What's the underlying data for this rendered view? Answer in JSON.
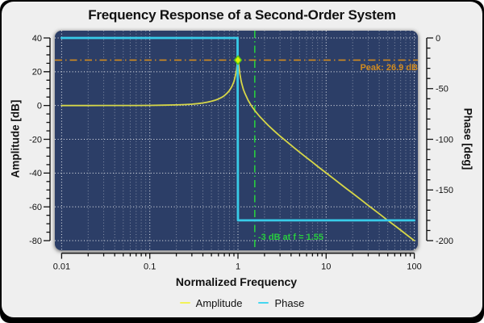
{
  "chart_data": {
    "type": "line",
    "title": "Frequency Response of a Second-Order System",
    "xlabel": "Normalized Frequency",
    "ylabel_left": "Amplitude [dB]",
    "ylabel_right": "Phase [deg]",
    "x_scale": "log",
    "x_range": [
      0.01,
      100
    ],
    "x_tick_values": [
      0.01,
      0.1,
      1,
      10,
      100
    ],
    "x_tick_labels": [
      "0.01",
      "0.1",
      "1",
      "10",
      "100"
    ],
    "y_left_range": [
      -80,
      40
    ],
    "y_left_tick_values": [
      40,
      20,
      0,
      -20,
      -40,
      -60,
      -80
    ],
    "y_left_tick_labels": [
      "40",
      "20",
      "0",
      "-20",
      "-40",
      "-60",
      "-80"
    ],
    "y_left_minor_step": 5,
    "y_right_range": [
      -200,
      0
    ],
    "y_right_tick_values": [
      0,
      -50,
      -100,
      -150,
      -200
    ],
    "y_right_tick_labels": [
      "0",
      "-50",
      "-100",
      "-150",
      "-200"
    ],
    "y_right_minor_step": 10,
    "grid": {
      "on": true,
      "style": "white-dotted",
      "plot_background": "#2c3e67"
    },
    "legend": [
      {
        "label": "Amplitude",
        "color": "#f2f258"
      },
      {
        "label": "Phase",
        "color": "#45d6f0"
      }
    ],
    "series": [
      {
        "name": "Amplitude",
        "axis": "left",
        "color": "#d6d648",
        "width": 1.8,
        "points": [
          [
            0.01,
            0
          ],
          [
            0.02,
            0
          ],
          [
            0.03,
            0.01
          ],
          [
            0.04,
            0.01
          ],
          [
            0.05,
            0.02
          ],
          [
            0.07,
            0.04
          ],
          [
            0.1,
            0.09
          ],
          [
            0.15,
            0.2
          ],
          [
            0.2,
            0.35
          ],
          [
            0.25,
            0.56
          ],
          [
            0.3,
            0.82
          ],
          [
            0.35,
            1.14
          ],
          [
            0.4,
            1.51
          ],
          [
            0.45,
            1.97
          ],
          [
            0.5,
            2.5
          ],
          [
            0.55,
            3.13
          ],
          [
            0.6,
            3.87
          ],
          [
            0.65,
            4.77
          ],
          [
            0.7,
            5.84
          ],
          [
            0.75,
            7.18
          ],
          [
            0.8,
            8.87
          ],
          [
            0.85,
            11.1
          ],
          [
            0.88,
            12.9
          ],
          [
            0.9,
            14.2
          ],
          [
            0.92,
            16.0
          ],
          [
            0.95,
            19.5
          ],
          [
            0.96,
            20.9
          ],
          [
            0.97,
            22.7
          ],
          [
            0.99,
            26.2
          ],
          [
            1.0,
            26.9
          ],
          [
            1.01,
            26.0
          ],
          [
            1.02,
            24.2
          ],
          [
            1.03,
            22.3
          ],
          [
            1.05,
            18.9
          ],
          [
            1.08,
            15.2
          ],
          [
            1.1,
            13.3
          ],
          [
            1.15,
            9.7
          ],
          [
            1.2,
            7.1
          ],
          [
            1.3,
            3.2
          ],
          [
            1.4,
            0.35
          ],
          [
            1.45,
            -0.85
          ],
          [
            1.55,
            -2.94
          ],
          [
            1.6,
            -3.86
          ],
          [
            1.7,
            -5.5
          ],
          [
            1.8,
            -7.0
          ],
          [
            2.0,
            -9.5
          ],
          [
            2.2,
            -11.7
          ],
          [
            2.5,
            -14.4
          ],
          [
            2.7,
            -16.0
          ],
          [
            3.0,
            -18.1
          ],
          [
            3.5,
            -21.0
          ],
          [
            4.0,
            -23.5
          ],
          [
            4.5,
            -25.7
          ],
          [
            5.0,
            -27.6
          ],
          [
            6.0,
            -30.9
          ],
          [
            7.0,
            -33.6
          ],
          [
            8.0,
            -36.0
          ],
          [
            10,
            -39.9
          ],
          [
            12,
            -43.1
          ],
          [
            15,
            -47.0
          ],
          [
            17,
            -49.2
          ],
          [
            20,
            -52.0
          ],
          [
            25,
            -55.9
          ],
          [
            30,
            -59.1
          ],
          [
            40,
            -64.1
          ],
          [
            50,
            -68.0
          ],
          [
            60,
            -71.1
          ],
          [
            70,
            -73.8
          ],
          [
            85,
            -77.2
          ],
          [
            100,
            -80.0
          ]
        ]
      },
      {
        "name": "Phase",
        "axis": "right",
        "color": "#38cbe8",
        "width": 2.8,
        "points": [
          [
            0.01,
            0
          ],
          [
            0.99,
            0
          ],
          [
            1.0,
            -180
          ],
          [
            100,
            -180
          ]
        ]
      }
    ],
    "annotations": {
      "peak": {
        "label": "Peak: 26.9 dB",
        "value_db": 26.9,
        "freq": 1.0,
        "color": "#d18b1f",
        "line_style": "dash-dot-horizontal"
      },
      "cutoff": {
        "label": "-3 dB at f = 1.55",
        "level_db": -3,
        "freq": 1.55,
        "color": "#28cc3f",
        "line_style": "dash-dot-vertical"
      },
      "peak_marker": {
        "shape": "diamond",
        "freq": 1.0,
        "value_db": 26.9,
        "fill": "#dff000",
        "edge": "#58c814"
      }
    }
  }
}
